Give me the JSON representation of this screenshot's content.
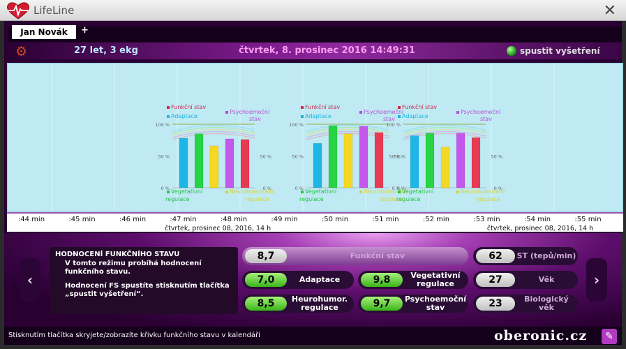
{
  "window": {
    "title": "LifeLine",
    "close_glyph": "✕",
    "logo_icon": "heart-pulse-icon"
  },
  "tabs": {
    "patient": "Jan Novák",
    "add": "+"
  },
  "infobar": {
    "age": "27 let, 3 ekg",
    "datetime": "čtvrtek, 8. prosinec 2016 14:49:31",
    "start_label": "spustit vyšetření",
    "gear_glyph": "⚙",
    "led_color": "#1aa31a"
  },
  "chart_data": [
    {
      "type": "bar",
      "categories": [
        "Adaptace",
        "Vegetativní regulace",
        "Neurohumorální regulace",
        "Psychoemoční stav",
        "Funkční stav"
      ],
      "values": [
        78,
        85,
        66,
        77,
        76
      ],
      "ylim": [
        0,
        100
      ],
      "ticks": [
        "100 %",
        "50 %",
        "0 %"
      ],
      "legend": [
        "Funkční stav",
        "Adaptace",
        "Psychoemoční stav",
        "Vegetativní regulace",
        "Neurohumorální regulace"
      ],
      "legend_colors": [
        "#cc2b4e",
        "#20b3e0",
        "#b64ed6",
        "#25c244",
        "#d8d430"
      ]
    },
    {
      "type": "bar",
      "categories": [
        "Adaptace",
        "Vegetativní regulace",
        "Neurohumorální regulace",
        "Psychoemoční stav",
        "Funkční stav"
      ],
      "values": [
        70,
        98,
        85,
        97,
        87
      ],
      "ylim": [
        0,
        100
      ],
      "ticks": [
        "100 %",
        "50 %",
        "0 %"
      ],
      "legend": [
        "Funkční stav",
        "Adaptace",
        "Psychoemoční stav",
        "Vegetativní regulace",
        "Neurohumorální regulace"
      ],
      "legend_colors": [
        "#cc2b4e",
        "#20b3e0",
        "#b64ed6",
        "#25c244",
        "#d8d430"
      ]
    },
    {
      "type": "bar",
      "categories": [
        "Adaptace",
        "Vegetativní regulace",
        "Neurohumorální regulace",
        "Psychoemoční stav",
        "Funkční stav"
      ],
      "values": [
        82,
        86,
        64,
        86,
        79
      ],
      "ylim": [
        0,
        100
      ],
      "ticks": [
        "100 %",
        "50 %",
        "0 %"
      ],
      "legend": [
        "Funkční stav",
        "Adaptace",
        "Psychoemoční stav",
        "Vegetativní regulace",
        "Neurohumorální regulace"
      ],
      "legend_colors": [
        "#cc2b4e",
        "#20b3e0",
        "#b64ed6",
        "#25c244",
        "#d8d430"
      ]
    }
  ],
  "legend_labels": {
    "funkcni": "Funkční stav",
    "adaptace": "Adaptace",
    "psycho": "Psychoemoční",
    "psycho2": "stav",
    "veget": "Vegetativní",
    "veget2": "regulace",
    "neuro": "Neurohumorální",
    "neuro2": "regulace"
  },
  "timeline": {
    "minutes": [
      ":44 min",
      ":45 min",
      ":46 min",
      ":47 min",
      ":48 min",
      ":49 min",
      ":50 min",
      ":51 min",
      ":52 min",
      ":53 min",
      ":54 min",
      ":55 min"
    ],
    "date_labels": [
      "čtvrtek, prosinec 08, 2016, 14 h",
      "čtvrtek, prosinec 08, 2016, 14 h"
    ]
  },
  "description": {
    "title": "HODNOCENÍ FUNKČNÍHO STAVU",
    "p1": "V tomto režimu probíhá hodnocení funkčního stavu.",
    "p2": "Hodnocení FS spustíte stisknutím tlačítka „spustit vyšetření“."
  },
  "metrics": {
    "funkcni_stav": {
      "value": "8,7",
      "label": "Funkční stav"
    },
    "adaptace": {
      "value": "7,0",
      "label": "Adaptace"
    },
    "vegetativni": {
      "value": "9,8",
      "label": "Vegetativní regulace"
    },
    "neurohumor": {
      "value": "8,5",
      "label": "Heurohumor. regulace"
    },
    "psychoemocni": {
      "value": "9,7",
      "label": "Psychoemoční stav"
    },
    "st": {
      "value": "62",
      "label": "ST (tepů/min)"
    },
    "vek": {
      "value": "27",
      "label": "Věk"
    },
    "bio_vek": {
      "value": "23",
      "label": "Biologický věk"
    }
  },
  "nav": {
    "prev": "‹",
    "next": "›"
  },
  "status": {
    "text": "Stisknutím tlačítka skryjete/zobrazíte křivku funkčního stavu v kalendáři",
    "brand": "oberonic.cz",
    "edit_glyph": "✎"
  }
}
